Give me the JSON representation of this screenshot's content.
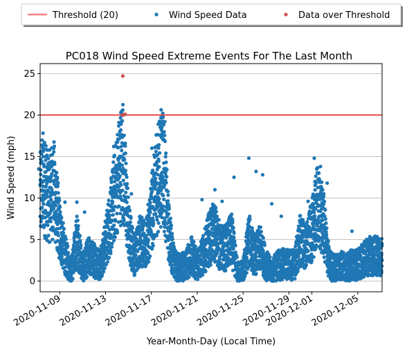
{
  "chart_data": {
    "type": "scatter",
    "title": "PC018 Wind Speed Extreme Events For The Last Month",
    "xlabel": "Year-Month-Day (Local Time)",
    "ylabel": "Wind Speed (mph)",
    "x_range": [
      "2020-11-07",
      "2020-12-07"
    ],
    "ylim": [
      -1.3,
      26.2
    ],
    "yticks": [
      0,
      5,
      10,
      15,
      20,
      25
    ],
    "xticks": [
      "2020-11-09",
      "2020-11-13",
      "2020-11-17",
      "2020-11-21",
      "2020-11-25",
      "2020-11-29",
      "2020-12-01",
      "2020-12-05"
    ],
    "grid": "horizontal",
    "legend_position": "top, outside plot, 3 columns",
    "threshold": {
      "label": "Threshold (20)",
      "value": 20,
      "color": "#f28080"
    },
    "series": [
      {
        "name": "Wind Speed Data",
        "color": "#1f77b4",
        "profile": [
          [
            "2020-11-07",
            7
          ],
          [
            "2020-11-07T12",
            12
          ],
          [
            "2020-11-08",
            10
          ],
          [
            "2020-11-08T12",
            11
          ],
          [
            "2020-11-09",
            6
          ],
          [
            "2020-11-09T12",
            3
          ],
          [
            "2020-11-10",
            1
          ],
          [
            "2020-11-10T12",
            5
          ],
          [
            "2020-11-11",
            1.5
          ],
          [
            "2020-11-11T12",
            3
          ],
          [
            "2020-11-12",
            2.5
          ],
          [
            "2020-11-12T12",
            2
          ],
          [
            "2020-11-13",
            4.5
          ],
          [
            "2020-11-13T12",
            8
          ],
          [
            "2020-11-14",
            12
          ],
          [
            "2020-11-14T12",
            15
          ],
          [
            "2020-11-15",
            6
          ],
          [
            "2020-11-15T12",
            3
          ],
          [
            "2020-11-16",
            5
          ],
          [
            "2020-11-16T12",
            4
          ],
          [
            "2020-11-17",
            8
          ],
          [
            "2020-11-17T12",
            12
          ],
          [
            "2020-11-18",
            14.5
          ],
          [
            "2020-11-18T12",
            6
          ],
          [
            "2020-11-19",
            2
          ],
          [
            "2020-11-19T12",
            1.5
          ],
          [
            "2020-11-20",
            2
          ],
          [
            "2020-11-20T12",
            3
          ],
          [
            "2020-11-21",
            2
          ],
          [
            "2020-11-21T12",
            3
          ],
          [
            "2020-11-22",
            5
          ],
          [
            "2020-11-22T12",
            6
          ],
          [
            "2020-11-23",
            4
          ],
          [
            "2020-11-23T12",
            4
          ],
          [
            "2020-11-24",
            5
          ],
          [
            "2020-11-24T12",
            1
          ],
          [
            "2020-11-25",
            1
          ],
          [
            "2020-11-25T12",
            5
          ],
          [
            "2020-11-26",
            3
          ],
          [
            "2020-11-26T12",
            4
          ],
          [
            "2020-11-27",
            2
          ],
          [
            "2020-11-27T12",
            1
          ],
          [
            "2020-11-28",
            2
          ],
          [
            "2020-11-28T12",
            2
          ],
          [
            "2020-11-29",
            2
          ],
          [
            "2020-11-29T12",
            2
          ],
          [
            "2020-11-30",
            5
          ],
          [
            "2020-11-30T12",
            4
          ],
          [
            "2020-12-01",
            6
          ],
          [
            "2020-12-01T12",
            9
          ],
          [
            "2020-12-02",
            7
          ],
          [
            "2020-12-02T12",
            2
          ],
          [
            "2020-12-03",
            1.5
          ],
          [
            "2020-12-03T12",
            2
          ],
          [
            "2020-12-04",
            1.5
          ],
          [
            "2020-12-04T12",
            2
          ],
          [
            "2020-12-05",
            2
          ],
          [
            "2020-12-05T12",
            2.5
          ],
          [
            "2020-12-06",
            3
          ],
          [
            "2020-12-06T12",
            3
          ],
          [
            "2020-12-07",
            3
          ]
        ],
        "peaks": [
          [
            "2020-11-07T04",
            13.5
          ],
          [
            "2020-11-07T19",
            16.3
          ],
          [
            "2020-11-08T07",
            13.8
          ],
          [
            "2020-11-08T13",
            14.3
          ],
          [
            "2020-11-09T11",
            9.5
          ],
          [
            "2020-11-10T12",
            9.5
          ],
          [
            "2020-11-11T04",
            8.3
          ],
          [
            "2020-11-13T17",
            16.2
          ],
          [
            "2020-11-14T08",
            18.2
          ],
          [
            "2020-11-14T11",
            19.3
          ],
          [
            "2020-11-17T01",
            16.0
          ],
          [
            "2020-11-17T10",
            17.6
          ],
          [
            "2020-11-17T22",
            18.5
          ],
          [
            "2020-11-18T00",
            19.7
          ],
          [
            "2020-11-18T04",
            19.2
          ],
          [
            "2020-11-22T13",
            11.0
          ],
          [
            "2020-11-24T05",
            12.5
          ],
          [
            "2020-11-25T12",
            14.8
          ],
          [
            "2020-11-26T03",
            13.2
          ],
          [
            "2020-11-26T17",
            12.8
          ],
          [
            "2020-12-01T05",
            14.8
          ],
          [
            "2020-12-01T10",
            13.5
          ],
          [
            "2020-12-01T18",
            13.8
          ],
          [
            "2020-12-02T08",
            11.8
          ],
          [
            "2020-11-14T05",
            12.5
          ],
          [
            "2020-11-15T06",
            10.5
          ],
          [
            "2020-11-21T10",
            9.8
          ],
          [
            "2020-11-23T04",
            9.6
          ],
          [
            "2020-11-27T12",
            9.3
          ],
          [
            "2020-11-28T08",
            7.8
          ],
          [
            "2020-11-30T16",
            9.6
          ],
          [
            "2020-12-04T12",
            6.0
          ],
          [
            "2020-12-06T12",
            5.4
          ]
        ]
      },
      {
        "name": "Data over Threshold",
        "color": "#d05050",
        "points": [
          [
            "2020-11-14T12",
            24.7
          ],
          [
            "2020-11-14T12",
            20.0
          ],
          [
            "2020-11-14T17",
            20.1
          ]
        ]
      }
    ]
  }
}
